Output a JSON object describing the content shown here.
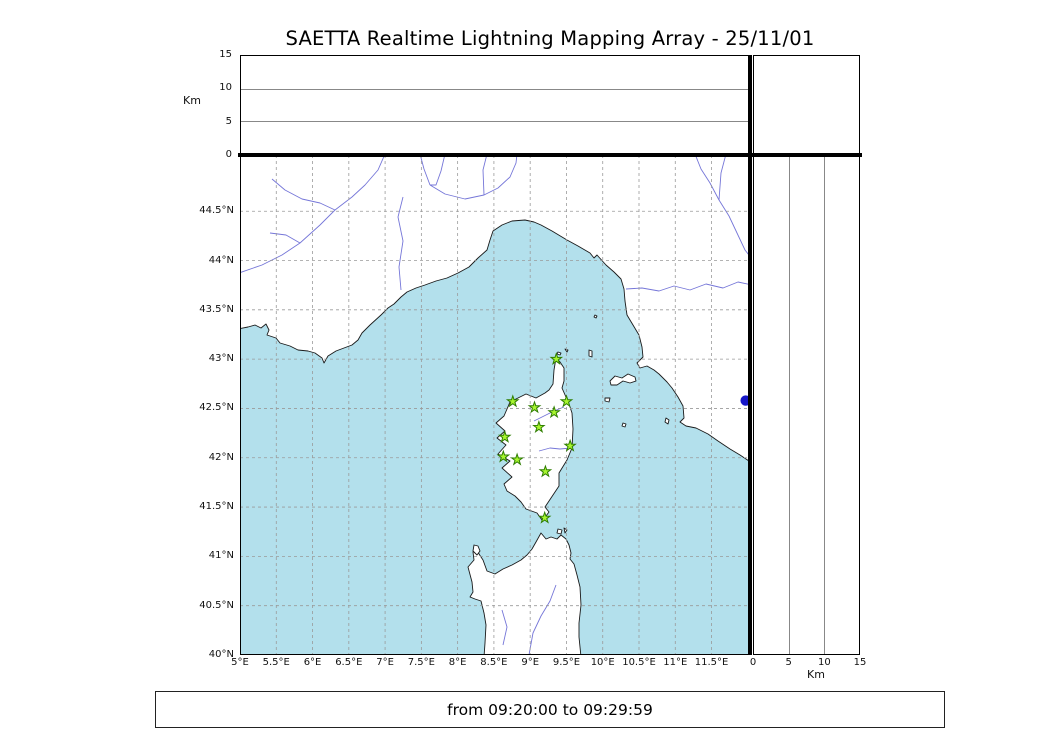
{
  "title": "SAETTA Realtime Lightning Mapping Array - 25/11/01",
  "footer_text": "from 09:20:00 to 09:29:59",
  "axes": {
    "altitude": {
      "label": "Km",
      "range": [
        0,
        15
      ],
      "ticks": [
        15,
        10,
        5,
        0
      ]
    },
    "km_bottom": {
      "label": "Km",
      "range": [
        0,
        15
      ],
      "ticks": [
        0,
        5,
        10,
        15
      ]
    },
    "longitude": {
      "range": [
        5,
        12.03
      ],
      "ticks": [
        5,
        5.5,
        6,
        6.5,
        7,
        7.5,
        8,
        8.5,
        9,
        9.5,
        10,
        10.5,
        11,
        11.5
      ],
      "labels": [
        "5°E",
        "5.5°E",
        "6°E",
        "6.5°E",
        "7°E",
        "7.5°E",
        "8°E",
        "8.5°E",
        "9°E",
        "9.5°E",
        "10°E",
        "10.5°E",
        "11°E",
        "11.5°E"
      ]
    },
    "latitude": {
      "range": [
        40,
        45.07
      ],
      "ticks": [
        44.5,
        44,
        43.5,
        43,
        42.5,
        42,
        41.5,
        41,
        40.5,
        40
      ],
      "labels": [
        "44.5°N",
        "44°N",
        "43.5°N",
        "43°N",
        "42.5°N",
        "42°N",
        "41.5°N",
        "41°N",
        "40.5°N",
        "40°N"
      ]
    }
  },
  "colors": {
    "sea": "#b3e0ec",
    "land": "#ffffff",
    "coast": "#1a1a1a",
    "river": "#7576d8",
    "grid": "#9a9a9a",
    "station_fill": "#a8f62f",
    "station_edge": "#2e7d00",
    "source": "#1616c8"
  },
  "stations": [
    {
      "lon": 9.36,
      "lat": 43.0
    },
    {
      "lon": 8.76,
      "lat": 42.57
    },
    {
      "lon": 9.06,
      "lat": 42.51
    },
    {
      "lon": 9.5,
      "lat": 42.57
    },
    {
      "lon": 9.33,
      "lat": 42.46
    },
    {
      "lon": 9.12,
      "lat": 42.31
    },
    {
      "lon": 8.65,
      "lat": 42.21
    },
    {
      "lon": 9.55,
      "lat": 42.12
    },
    {
      "lon": 8.63,
      "lat": 42.01
    },
    {
      "lon": 8.82,
      "lat": 41.98
    },
    {
      "lon": 9.21,
      "lat": 41.86
    },
    {
      "lon": 9.2,
      "lat": 41.39
    }
  ],
  "sources": [
    {
      "lon": 11.97,
      "lat": 42.58
    }
  ]
}
